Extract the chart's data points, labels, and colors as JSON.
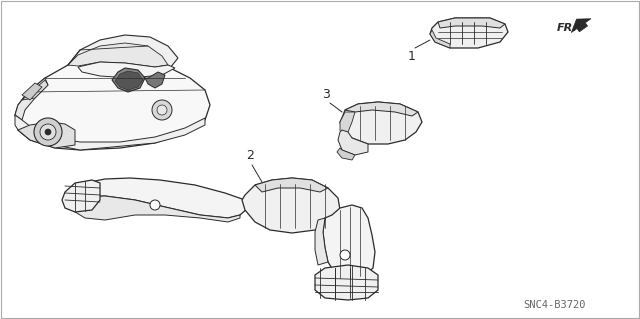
{
  "bg_color": "#ffffff",
  "line_color": "#2a2a2a",
  "diagram_code": "SNC4-B3720",
  "fr_label": "FR.",
  "fig_width": 6.4,
  "fig_height": 3.19,
  "dpi": 100,
  "part1_label": "1",
  "part2_label": "2",
  "part3_label": "3",
  "border_color": "#cccccc"
}
